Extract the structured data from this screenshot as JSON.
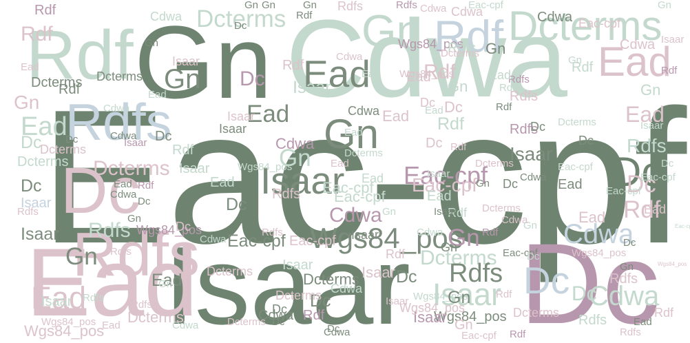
{
  "palette": {
    "dark_green": "#6f8470",
    "mint": "#c4d9cd",
    "mauve": "#b797ad",
    "pink": "#dcc3cb",
    "blue": "#c5d3df",
    "gray_green": "#7c8c7c"
  },
  "words": [
    {
      "text": "Eac-cpf",
      "color": "dark_green"
    },
    {
      "text": "Isaar",
      "color": "dark_green"
    },
    {
      "text": "Cdwa",
      "color": "mint"
    },
    {
      "text": "Gn",
      "color": "dark_green"
    },
    {
      "text": "Dc",
      "color": "mauve"
    },
    {
      "text": "Ead",
      "color": "pink"
    },
    {
      "text": "Rdf",
      "color": "mint"
    },
    {
      "text": "Rdfs",
      "color": "pink"
    },
    {
      "text": "Dcterms",
      "color": "mint"
    },
    {
      "text": "Gn",
      "color": "mint"
    },
    {
      "text": "Ead",
      "color": "pink"
    },
    {
      "text": "Dc",
      "color": "pink"
    },
    {
      "text": "Rdfs",
      "color": "blue"
    },
    {
      "text": "Rdf",
      "color": "blue"
    },
    {
      "text": "Dc",
      "color": "dark_green"
    },
    {
      "text": "Ead",
      "color": "gray_green"
    },
    {
      "text": "Gn",
      "color": "gray_green"
    },
    {
      "text": "Isaar",
      "color": "gray_green"
    },
    {
      "text": "Wgs84_pos",
      "color": "gray_green"
    },
    {
      "text": "Cdwa",
      "color": "mauve"
    },
    {
      "text": "Eac-cpf",
      "color": "mauve"
    },
    {
      "text": "Rdf",
      "color": "pink"
    },
    {
      "text": "Cdwa",
      "color": "blue"
    },
    {
      "text": "Dc",
      "color": "blue"
    },
    {
      "text": "Isaar",
      "color": "mint"
    },
    {
      "text": "Cdwa",
      "color": "mint"
    },
    {
      "text": "Wgs84_pos",
      "color": "mauve"
    },
    {
      "text": "Dcterms",
      "color": "mint"
    },
    {
      "text": "Rdfs",
      "color": "gray_green"
    },
    {
      "text": "Gn",
      "color": "mauve"
    },
    {
      "text": "Ead",
      "color": "pink"
    },
    {
      "text": "Dc",
      "color": "pink"
    },
    {
      "text": "Isaar",
      "color": "gray_green"
    },
    {
      "text": "Ead",
      "color": "pink"
    },
    {
      "text": "Dcterms",
      "color": "pink"
    },
    {
      "text": "Rdfs",
      "color": "mint"
    },
    {
      "text": "Dcterms",
      "color": "pink"
    },
    {
      "text": "Rdf",
      "color": "mauve"
    },
    {
      "text": "Rdf",
      "color": "pink"
    },
    {
      "text": "Rdfs",
      "color": "mint"
    },
    {
      "text": "Isaar",
      "color": "mint"
    },
    {
      "text": "Gn",
      "color": "gray_green"
    },
    {
      "text": "Dcterms",
      "color": "mint"
    },
    {
      "text": "Cdwa",
      "color": "mint"
    },
    {
      "text": "Eac-cpf",
      "color": "pink"
    },
    {
      "text": "Ead",
      "color": "gray_green"
    },
    {
      "text": "Dc",
      "color": "mauve"
    },
    {
      "text": "Gn",
      "color": "gray_green"
    },
    {
      "text": "Ead",
      "color": "gray_green"
    },
    {
      "text": "Eac-cpf",
      "color": "mint"
    },
    {
      "text": "Cdwa",
      "color": "pink"
    },
    {
      "text": "Gn",
      "color": "mint"
    },
    {
      "text": "Rdf",
      "color": "mint"
    },
    {
      "text": "Rdfs",
      "color": "mauve"
    },
    {
      "text": "Dc",
      "color": "gray_green"
    },
    {
      "text": "Dc",
      "color": "gray_green"
    },
    {
      "text": "Isaar",
      "color": "gray_green"
    },
    {
      "text": "Eac-cpf",
      "color": "gray_green"
    },
    {
      "text": "Wgs84_pos",
      "color": "mauve"
    },
    {
      "text": "Ead",
      "color": "mint"
    },
    {
      "text": "Rdf",
      "color": "pink"
    },
    {
      "text": "Isaar",
      "color": "pink"
    },
    {
      "text": "Isaar",
      "color": "mint"
    },
    {
      "text": "Ead",
      "color": "pink"
    },
    {
      "text": "Dc",
      "color": "mint"
    },
    {
      "text": "Rdfs",
      "color": "pink"
    },
    {
      "text": "Dc",
      "color": "pink"
    },
    {
      "text": "Ead",
      "color": "pink"
    },
    {
      "text": "Dcterms",
      "color": "mint"
    },
    {
      "text": "Cdwa",
      "color": "gray_green"
    },
    {
      "text": "Dcterms",
      "color": "gray_green"
    },
    {
      "text": "Isaar",
      "color": "gray_green"
    },
    {
      "text": "Wgs84_pos",
      "color": "gray_green"
    },
    {
      "text": "Dcterms",
      "color": "pink"
    },
    {
      "text": "Dc",
      "color": "gray_green"
    },
    {
      "text": "Gn",
      "color": "pink"
    },
    {
      "text": "Rdf",
      "color": "mint"
    },
    {
      "text": "Dc",
      "color": "gray_green"
    },
    {
      "text": "Rdfs",
      "color": "mauve"
    },
    {
      "text": "Eac-cpf",
      "color": "mint"
    },
    {
      "text": "Isaar",
      "color": "mauve"
    },
    {
      "text": "Cdwa",
      "color": "gray_green"
    },
    {
      "text": "Dc",
      "color": "gray_green"
    },
    {
      "text": "Rdf",
      "color": "pink"
    },
    {
      "text": "Gn",
      "color": "mint"
    },
    {
      "text": "Ead",
      "color": "mint"
    },
    {
      "text": "Rdfs",
      "color": "mint"
    },
    {
      "text": "Isaar",
      "color": "blue"
    },
    {
      "text": "Dcterms",
      "color": "mint"
    },
    {
      "text": "Rdf",
      "color": "mint"
    },
    {
      "text": "Cdwa",
      "color": "mauve"
    },
    {
      "text": "Gn",
      "color": "gray_green"
    },
    {
      "text": "Eac-cpf",
      "color": "mint"
    },
    {
      "text": "Wgs84_pos",
      "color": "mint"
    },
    {
      "text": "Rdfs",
      "color": "pink"
    },
    {
      "text": "Dc",
      "color": "mint"
    },
    {
      "text": "Isaar",
      "color": "pink"
    },
    {
      "text": "Ead",
      "color": "pink"
    },
    {
      "text": "Rdf",
      "color": "gray_green"
    },
    {
      "text": "Cdwa",
      "color": "pink"
    },
    {
      "text": "Dc",
      "color": "gray_green"
    },
    {
      "text": "Gn",
      "color": "mint"
    },
    {
      "text": "Ead",
      "color": "gray_green"
    },
    {
      "text": "Rdfs",
      "color": "mint"
    },
    {
      "text": "Rdf",
      "color": "mauve"
    },
    {
      "text": "Wgs84_pos",
      "color": "pink"
    },
    {
      "text": "Gn",
      "color": "gray_green"
    },
    {
      "text": "Isaar",
      "color": "gray_green"
    },
    {
      "text": "Dcterms",
      "color": "pink"
    },
    {
      "text": "Cdwa",
      "color": "gray_green"
    },
    {
      "text": "Ead",
      "color": "mint"
    },
    {
      "text": "Rdfs",
      "color": "mauve"
    },
    {
      "text": "Eac-cpf",
      "color": "pink"
    },
    {
      "text": "Wgs84_pos",
      "color": "pink"
    },
    {
      "text": "Dc",
      "color": "gray_green"
    },
    {
      "text": "Gn",
      "color": "gray_green"
    },
    {
      "text": "Cdwa",
      "color": "gray_green"
    },
    {
      "text": "Rdf",
      "color": "mauve"
    },
    {
      "text": "Rdfs",
      "color": "pink"
    },
    {
      "text": "Isaar",
      "color": "pink"
    },
    {
      "text": "Ead",
      "color": "pink"
    },
    {
      "text": "Dc",
      "color": "pink"
    },
    {
      "text": "Gn",
      "color": "pink"
    },
    {
      "text": "Ead",
      "color": "mint"
    },
    {
      "text": "Rdfs",
      "color": "mint"
    },
    {
      "text": "Cdwa",
      "color": "mint"
    },
    {
      "text": "Dcterms",
      "color": "gray_green"
    },
    {
      "text": "Eac-cpf",
      "color": "pink"
    },
    {
      "text": "Rdf",
      "color": "pink"
    },
    {
      "text": "Gn",
      "color": "mint"
    },
    {
      "text": "Dc",
      "color": "pink"
    },
    {
      "text": "Isaar",
      "color": "mint"
    },
    {
      "text": "Cdwa",
      "color": "pink"
    },
    {
      "text": "Rdf",
      "color": "pink"
    },
    {
      "text": "Rdfs",
      "color": "pink"
    },
    {
      "text": "Ead",
      "color": "pink"
    },
    {
      "text": "Eac-cpf",
      "color": "mint"
    },
    {
      "text": "Dc",
      "color": "gray_green"
    },
    {
      "text": "Wgs84_pos",
      "color": "pink"
    },
    {
      "text": "Dcterms",
      "color": "pink"
    },
    {
      "text": "Gn",
      "color": "gray_green"
    },
    {
      "text": "Isaar",
      "color": "mint"
    },
    {
      "text": "Rdf",
      "color": "mint"
    },
    {
      "text": "Cdwa",
      "color": "mint"
    },
    {
      "text": "Dc",
      "color": "gray_green"
    },
    {
      "text": "Ead",
      "color": "mint"
    },
    {
      "text": "Rdfs",
      "color": "pink"
    },
    {
      "text": "Wgs84_pos",
      "color": "pink"
    },
    {
      "text": "Gn",
      "color": "gray_green"
    },
    {
      "text": "Eac-cpf",
      "color": "gray_green"
    },
    {
      "text": "Cdwa",
      "color": "gray_green"
    },
    {
      "text": "Dcterms",
      "color": "gray_green"
    },
    {
      "text": "Dc",
      "color": "gray_green"
    },
    {
      "text": "Rdf",
      "color": "mauve"
    },
    {
      "text": "Gn",
      "color": "mint"
    },
    {
      "text": "Ead",
      "color": "gray_green"
    },
    {
      "text": "Isaar",
      "color": "pink"
    },
    {
      "text": "Rdfs",
      "color": "pink"
    },
    {
      "text": "Dcterms",
      "color": "pink"
    },
    {
      "text": "Eac-cpf",
      "color": "pink"
    },
    {
      "text": "Cdwa",
      "color": "mint"
    },
    {
      "text": "Gn",
      "color": "gray_green"
    },
    {
      "text": "Dc",
      "color": "pink"
    },
    {
      "text": "Rdf",
      "color": "gray_green"
    },
    {
      "text": "Wgs84_pos",
      "color": "mint"
    },
    {
      "text": "Ead",
      "color": "gray_green"
    },
    {
      "text": "Cdwa",
      "color": "mint"
    },
    {
      "text": "Isaar",
      "color": "mint"
    },
    {
      "text": "Dcterms",
      "color": "mint"
    },
    {
      "text": "Dc",
      "color": "gray_green"
    },
    {
      "text": "Gn",
      "color": "mint"
    },
    {
      "text": "Rdfs",
      "color": "pink"
    },
    {
      "text": "Ead",
      "color": "mint"
    },
    {
      "text": "Dcterms",
      "color": "pink"
    },
    {
      "text": "Rdf",
      "color": "mauve"
    },
    {
      "text": "Cdwa",
      "color": "pink"
    },
    {
      "text": "Dc",
      "color": "mint"
    },
    {
      "text": "Isaar",
      "color": "mauve"
    },
    {
      "text": "Eac-cpf",
      "color": "mint"
    },
    {
      "text": "Gn",
      "color": "gray_green"
    },
    {
      "text": "Ead",
      "color": "mint"
    },
    {
      "text": "Dc",
      "color": "gray_green"
    },
    {
      "text": "Cdwa",
      "color": "gray_green"
    },
    {
      "text": "Eac-cpf",
      "color": "mint"
    },
    {
      "text": "Rdf",
      "color": "gray_green"
    },
    {
      "text": "Gn",
      "color": "mint"
    },
    {
      "text": "Dcterms",
      "color": "pink"
    },
    {
      "text": "Rdfs",
      "color": "pink"
    },
    {
      "text": "Isaar",
      "color": "mint"
    },
    {
      "text": "Wgs84_pos",
      "color": "pink"
    },
    {
      "text": "Ead",
      "color": "pink"
    },
    {
      "text": "Dc",
      "color": "gray_green"
    },
    {
      "text": "Rdf",
      "color": "pink"
    },
    {
      "text": "Gn",
      "color": "mint"
    },
    {
      "text": "Cdwa",
      "color": "mint"
    },
    {
      "text": "Rdfs",
      "color": "mint"
    },
    {
      "text": "Dcterms",
      "color": "pink"
    },
    {
      "text": "Ead",
      "color": "mint"
    },
    {
      "text": "Isaar",
      "color": "gray_green"
    },
    {
      "text": "Gn",
      "color": "gray_green"
    },
    {
      "text": "Dc",
      "color": "gray_green"
    },
    {
      "text": "Rdf",
      "color": "mauve"
    },
    {
      "text": "Cdwa",
      "color": "gray_green"
    },
    {
      "text": "Eac-cpf",
      "color": "mint"
    },
    {
      "text": "Ead",
      "color": "pink"
    },
    {
      "text": "Gn",
      "color": "gray_green"
    },
    {
      "text": "Dcterms",
      "color": "pink"
    },
    {
      "text": "Dc",
      "color": "gray_green"
    },
    {
      "text": "Isaar",
      "color": "pink"
    },
    {
      "text": "Rdfs",
      "color": "pink"
    },
    {
      "text": "Wgs84_pos",
      "color": "pink"
    },
    {
      "text": "Ead",
      "color": "mint"
    },
    {
      "text": "Rdf",
      "color": "pink"
    },
    {
      "text": "Gn",
      "color": "gray_green"
    },
    {
      "text": "Cdwa",
      "color": "pink"
    },
    {
      "text": "Dc",
      "color": "mint"
    }
  ]
}
